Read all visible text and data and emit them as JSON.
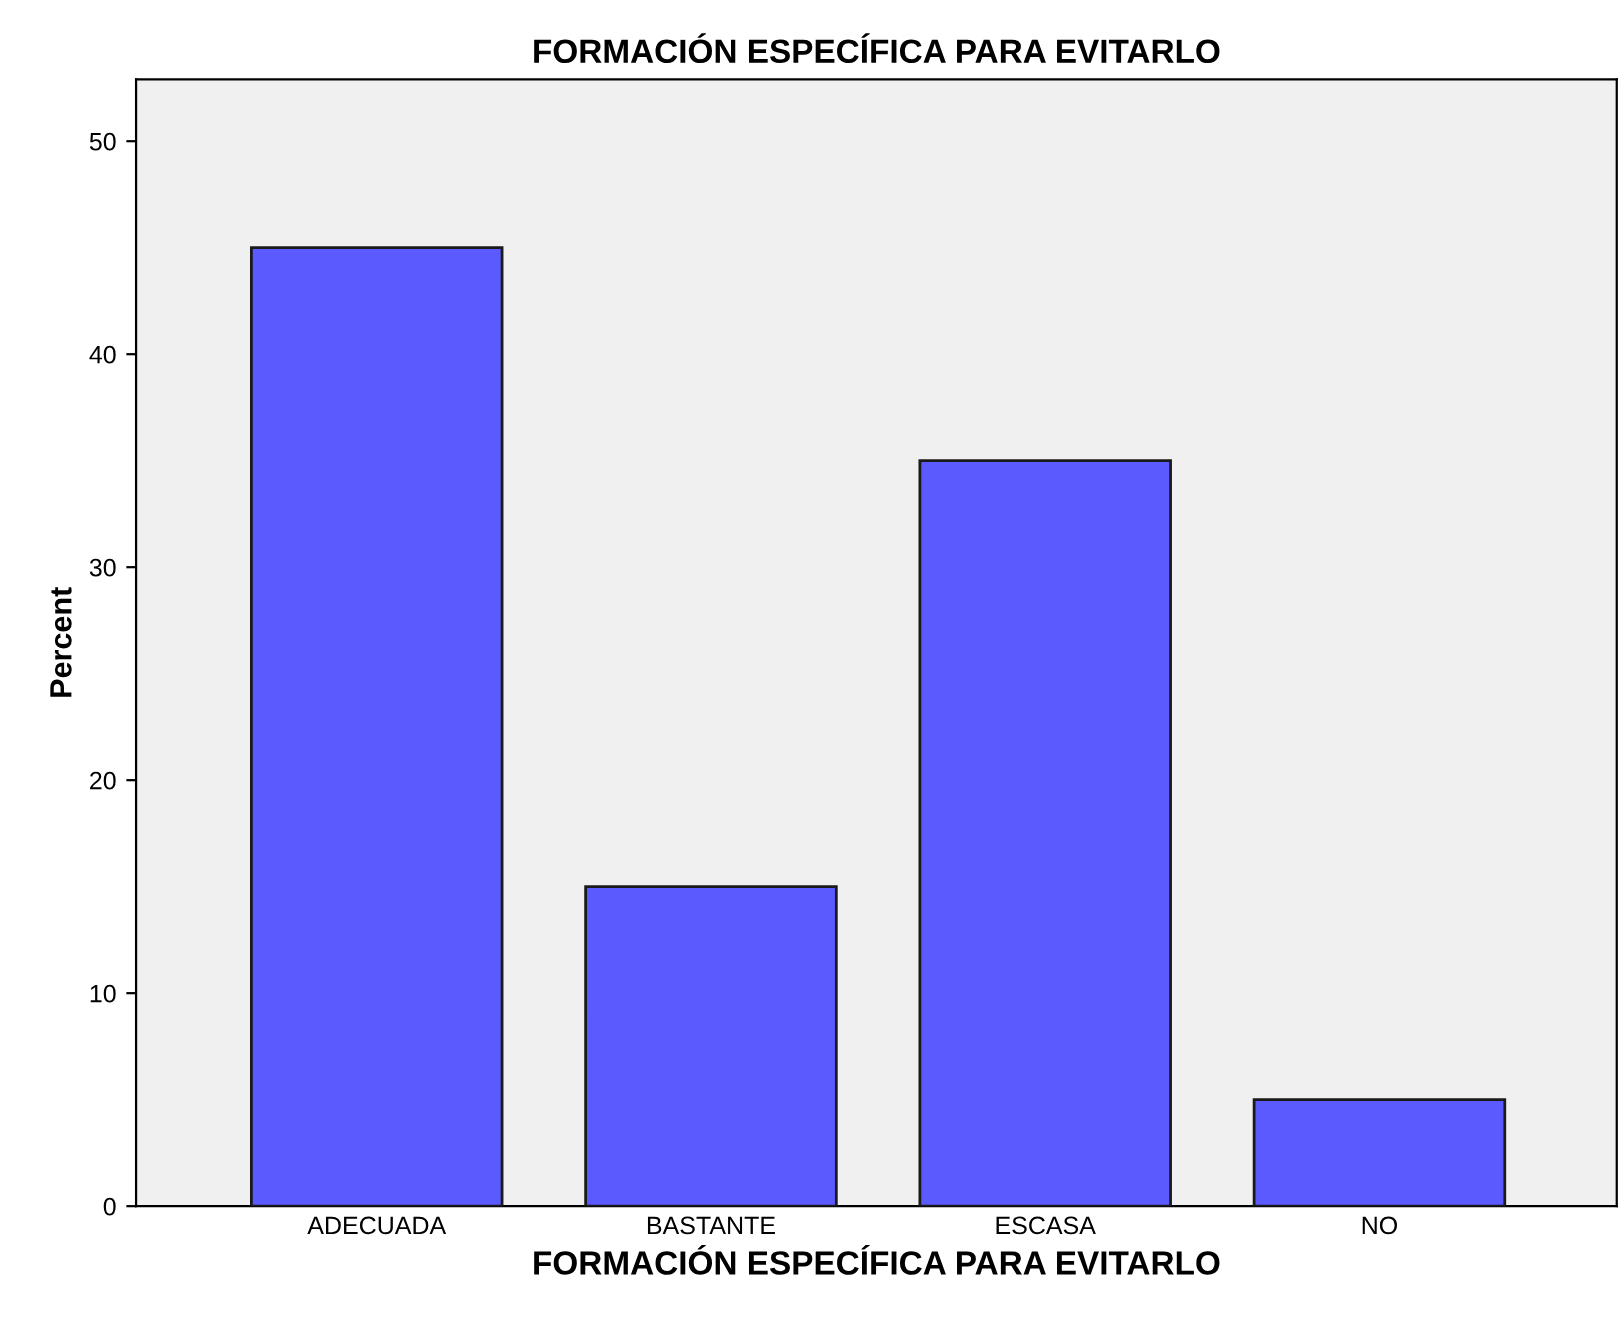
{
  "chart_data": {
    "type": "bar",
    "title": "FORMACIÓN ESPECÍFICA PARA EVITARLO",
    "xlabel": "FORMACIÓN ESPECÍFICA PARA EVITARLO",
    "ylabel": "Percent",
    "categories": [
      "ADECUADA",
      "BASTANTE",
      "ESCASA",
      "NO"
    ],
    "values": [
      45,
      15,
      35,
      5
    ],
    "color": "#5a5aff",
    "ylim": [
      0,
      52.9
    ],
    "yticks": [
      0,
      10,
      20,
      30,
      40,
      50
    ],
    "grid": false
  }
}
